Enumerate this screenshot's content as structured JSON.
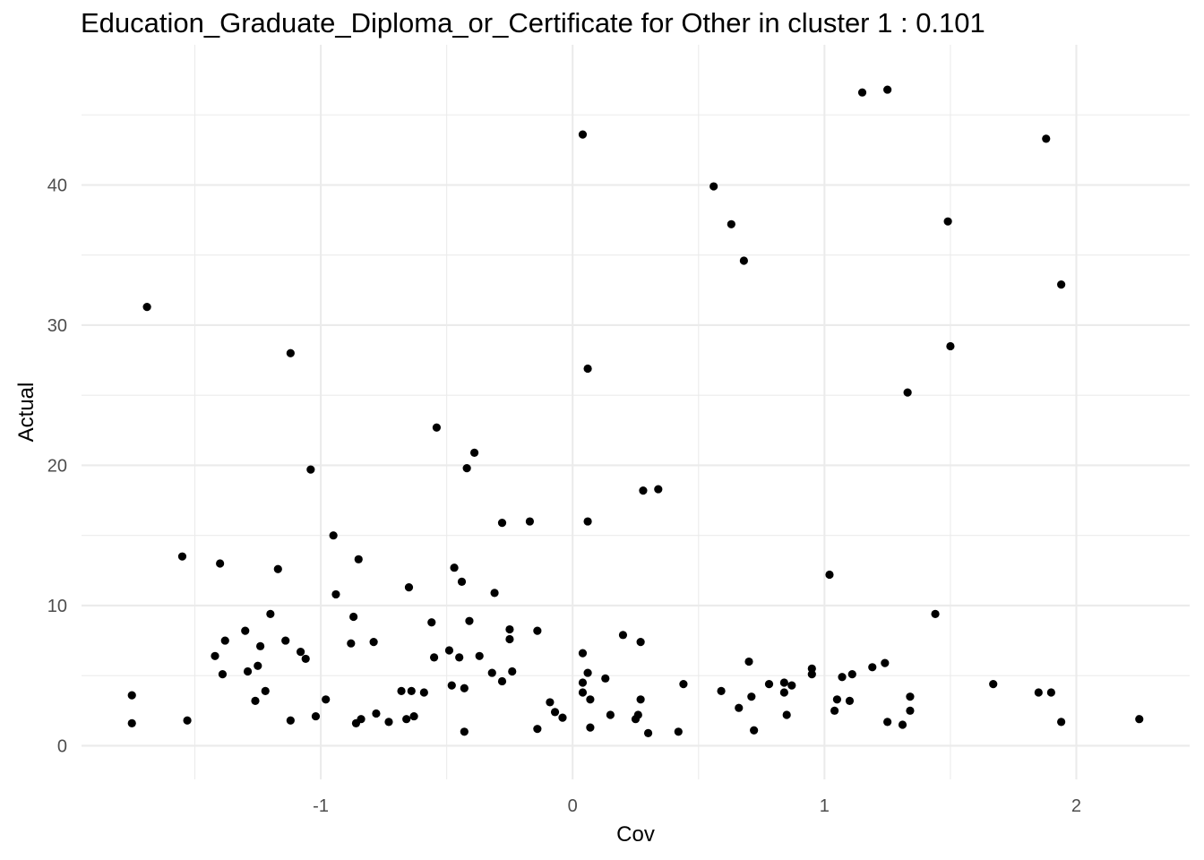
{
  "chart_data": {
    "type": "scatter",
    "title": "Education_Graduate_Diploma_or_Certificate for Other in cluster 1 : 0.101",
    "xlabel": "Cov",
    "ylabel": "Actual",
    "xlim": [
      -1.95,
      2.45
    ],
    "ylim": [
      -2.4,
      50
    ],
    "x_ticks": [
      -1,
      0,
      1,
      2
    ],
    "x_tick_labels": [
      "-1",
      "0",
      "1",
      "2"
    ],
    "y_ticks": [
      0,
      10,
      20,
      30,
      40
    ],
    "y_tick_labels": [
      "0",
      "10",
      "20",
      "30",
      "40"
    ],
    "grid": true,
    "point_color": "#000000",
    "gridline_color": "#ebebeb",
    "points": [
      [
        -1.75,
        3.6
      ],
      [
        -1.75,
        1.6
      ],
      [
        -1.69,
        31.3
      ],
      [
        -1.55,
        13.5
      ],
      [
        -1.53,
        1.8
      ],
      [
        -1.42,
        6.4
      ],
      [
        -1.4,
        13.0
      ],
      [
        -1.39,
        5.1
      ],
      [
        -1.38,
        7.5
      ],
      [
        -1.3,
        8.2
      ],
      [
        -1.29,
        5.3
      ],
      [
        -1.26,
        3.2
      ],
      [
        -1.25,
        5.7
      ],
      [
        -1.24,
        7.1
      ],
      [
        -1.22,
        3.9
      ],
      [
        -1.2,
        9.4
      ],
      [
        -1.17,
        12.6
      ],
      [
        -1.14,
        7.5
      ],
      [
        -1.12,
        28.0
      ],
      [
        -1.12,
        1.8
      ],
      [
        -1.08,
        6.7
      ],
      [
        -1.06,
        6.2
      ],
      [
        -1.04,
        19.7
      ],
      [
        -1.02,
        2.1
      ],
      [
        -0.98,
        3.3
      ],
      [
        -0.95,
        15.0
      ],
      [
        -0.94,
        10.8
      ],
      [
        -0.88,
        7.3
      ],
      [
        -0.87,
        9.2
      ],
      [
        -0.86,
        1.6
      ],
      [
        -0.85,
        13.3
      ],
      [
        -0.84,
        1.9
      ],
      [
        -0.79,
        7.4
      ],
      [
        -0.78,
        2.3
      ],
      [
        -0.73,
        1.7
      ],
      [
        -0.68,
        3.9
      ],
      [
        -0.66,
        1.9
      ],
      [
        -0.65,
        11.3
      ],
      [
        -0.64,
        3.9
      ],
      [
        -0.63,
        2.1
      ],
      [
        -0.59,
        3.8
      ],
      [
        -0.56,
        8.8
      ],
      [
        -0.55,
        6.3
      ],
      [
        -0.54,
        22.7
      ],
      [
        -0.49,
        6.8
      ],
      [
        -0.48,
        4.3
      ],
      [
        -0.47,
        12.7
      ],
      [
        -0.45,
        6.3
      ],
      [
        -0.44,
        11.7
      ],
      [
        -0.43,
        4.1
      ],
      [
        -0.43,
        1.0
      ],
      [
        -0.42,
        19.8
      ],
      [
        -0.41,
        8.9
      ],
      [
        -0.39,
        20.9
      ],
      [
        -0.37,
        6.4
      ],
      [
        -0.32,
        5.2
      ],
      [
        -0.31,
        10.9
      ],
      [
        -0.28,
        15.9
      ],
      [
        -0.28,
        4.6
      ],
      [
        -0.25,
        8.3
      ],
      [
        -0.25,
        7.6
      ],
      [
        -0.24,
        5.3
      ],
      [
        -0.17,
        16.0
      ],
      [
        -0.14,
        8.2
      ],
      [
        -0.14,
        1.2
      ],
      [
        -0.09,
        3.1
      ],
      [
        -0.07,
        2.4
      ],
      [
        -0.04,
        2.0
      ],
      [
        0.04,
        43.6
      ],
      [
        0.04,
        6.6
      ],
      [
        0.04,
        4.5
      ],
      [
        0.04,
        3.8
      ],
      [
        0.06,
        16.0
      ],
      [
        0.06,
        5.2
      ],
      [
        0.06,
        26.9
      ],
      [
        0.07,
        3.3
      ],
      [
        0.07,
        1.3
      ],
      [
        0.13,
        4.8
      ],
      [
        0.15,
        2.2
      ],
      [
        0.2,
        7.9
      ],
      [
        0.25,
        1.9
      ],
      [
        0.26,
        2.2
      ],
      [
        0.27,
        7.4
      ],
      [
        0.27,
        3.3
      ],
      [
        0.28,
        18.2
      ],
      [
        0.3,
        0.9
      ],
      [
        0.34,
        18.3
      ],
      [
        0.42,
        1.0
      ],
      [
        0.44,
        4.4
      ],
      [
        0.56,
        39.9
      ],
      [
        0.59,
        3.9
      ],
      [
        0.63,
        37.2
      ],
      [
        0.66,
        2.7
      ],
      [
        0.68,
        34.6
      ],
      [
        0.7,
        6.0
      ],
      [
        0.71,
        3.5
      ],
      [
        0.72,
        1.1
      ],
      [
        0.78,
        4.4
      ],
      [
        0.84,
        4.5
      ],
      [
        0.84,
        3.8
      ],
      [
        0.85,
        2.2
      ],
      [
        0.87,
        4.3
      ],
      [
        0.95,
        5.5
      ],
      [
        0.95,
        5.1
      ],
      [
        1.02,
        12.2
      ],
      [
        1.04,
        2.5
      ],
      [
        1.05,
        3.3
      ],
      [
        1.07,
        4.9
      ],
      [
        1.1,
        3.2
      ],
      [
        1.11,
        5.1
      ],
      [
        1.15,
        46.6
      ],
      [
        1.19,
        5.6
      ],
      [
        1.24,
        5.9
      ],
      [
        1.25,
        1.7
      ],
      [
        1.25,
        46.8
      ],
      [
        1.31,
        1.5
      ],
      [
        1.33,
        25.2
      ],
      [
        1.34,
        2.5
      ],
      [
        1.34,
        3.5
      ],
      [
        1.44,
        9.4
      ],
      [
        1.49,
        37.4
      ],
      [
        1.5,
        28.5
      ],
      [
        1.67,
        4.4
      ],
      [
        1.85,
        3.8
      ],
      [
        1.88,
        43.3
      ],
      [
        1.9,
        3.8
      ],
      [
        1.94,
        32.9
      ],
      [
        1.94,
        1.7
      ],
      [
        2.25,
        1.9
      ]
    ]
  }
}
